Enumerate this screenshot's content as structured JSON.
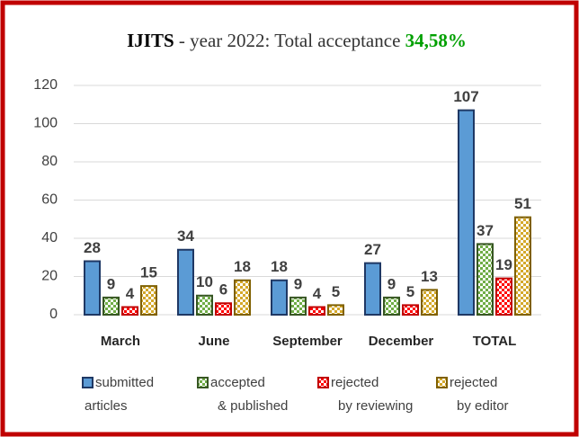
{
  "chart_data": {
    "type": "bar",
    "title": [
      "IJITS",
      "- year 2022: Total acceptance",
      "34,58%"
    ],
    "categories": [
      "March",
      "June",
      "September",
      "December",
      "TOTAL"
    ],
    "series": [
      {
        "name": "submitted articles",
        "color": "#5b9bd5",
        "values": [
          28,
          34,
          18,
          27,
          107
        ]
      },
      {
        "name": "accepted & published",
        "color": "#70ad47",
        "values": [
          9,
          10,
          9,
          9,
          37
        ]
      },
      {
        "name": "rejected by reviewing",
        "color": "#ff0000",
        "values": [
          4,
          6,
          4,
          5,
          19
        ]
      },
      {
        "name": "rejected by editor",
        "color": "#d4a82a",
        "values": [
          15,
          18,
          5,
          13,
          51
        ]
      }
    ],
    "ylim": [
      0,
      120
    ],
    "yticks": [
      0,
      20,
      40,
      60,
      80,
      100,
      120
    ],
    "grid": true,
    "legend": "bottom"
  }
}
